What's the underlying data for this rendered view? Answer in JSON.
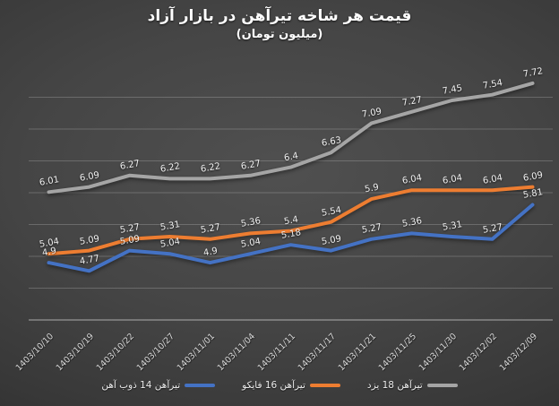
{
  "title": "قیمت هر شاخه تیرآهن در بازار آزاد",
  "subtitle": "(میلیون تومان)",
  "background_color": "#3d3d3d",
  "text_color": "#ffffff",
  "chart_data": {
    "type": "line",
    "title": "قیمت هر شاخه تیرآهن در بازار آزاد",
    "subtitle": "(میلیون تومان)",
    "categories": [
      "1403/10/10",
      "1403/10/19",
      "1403/10/22",
      "1403/10/27",
      "1403/11/01",
      "1403/11/04",
      "1403/11/11",
      "1403/11/17",
      "1403/11/21",
      "1403/11/25",
      "1403/11/30",
      "1403/12/02",
      "1403/12/09"
    ],
    "series": [
      {
        "name": "تیرآهن 14 ذوب آهن",
        "color": "#4472C4",
        "values": [
          4.9,
          4.77,
          5.09,
          5.04,
          4.9,
          5.04,
          5.18,
          5.09,
          5.27,
          5.36,
          5.31,
          5.27,
          5.81
        ]
      },
      {
        "name": "تیرآهن 16 فایکو",
        "color": "#ED7D31",
        "values": [
          5.04,
          5.09,
          5.27,
          5.31,
          5.27,
          5.36,
          5.4,
          5.54,
          5.9,
          6.04,
          6.04,
          6.04,
          6.09
        ]
      },
      {
        "name": "تیرآهن 18 یزد",
        "color": "#A5A5A5",
        "values": [
          6.01,
          6.09,
          6.27,
          6.22,
          6.22,
          6.27,
          6.4,
          6.63,
          7.09,
          7.27,
          7.45,
          7.54,
          7.72
        ]
      }
    ],
    "ylim": [
      4.0,
      8.0
    ],
    "gridline_step": 0.5,
    "grid": true,
    "data_labels": true,
    "legend_position": "bottom",
    "xlabel": "",
    "ylabel": ""
  }
}
